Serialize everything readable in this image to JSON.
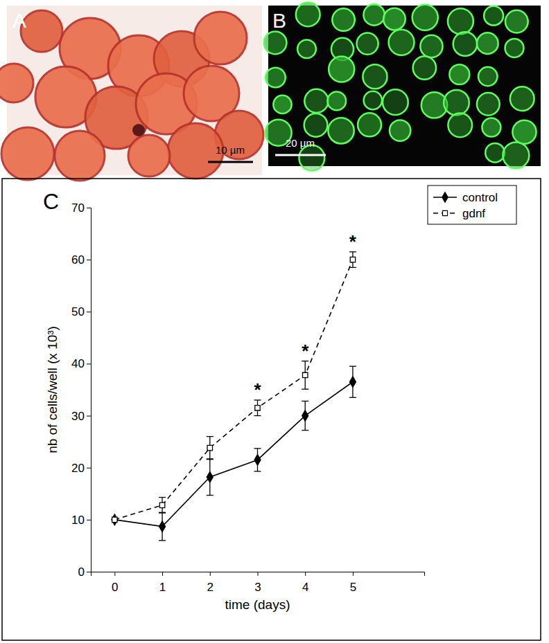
{
  "panels": [
    {
      "label": "A",
      "scale_bar": "10 µm"
    },
    {
      "label": "B",
      "scale_bar": "20 µm"
    },
    {
      "label": "C"
    }
  ],
  "chart_data": {
    "type": "line",
    "x_label": "time (days)",
    "y_label": "nb of cells/well (x 10³)",
    "x": [
      0,
      1,
      2,
      3,
      4,
      5
    ],
    "series": [
      {
        "name": "control",
        "color": "#000000",
        "marker": "diamond",
        "line_style": "solid",
        "values": [
          10,
          8.7,
          18.2,
          21.5,
          30,
          36.5
        ],
        "errors": [
          null,
          2.7,
          3.5,
          2.2,
          2.8,
          3
        ]
      },
      {
        "name": "gdnf",
        "color": "#000000",
        "marker": "open-square",
        "line_style": "dashed",
        "values": [
          10,
          12.8,
          23.8,
          31.5,
          37.8,
          60
        ],
        "errors": [
          null,
          1.5,
          2.2,
          1.5,
          2.7,
          1.5
        ]
      }
    ],
    "annotations": [
      {
        "x": 3,
        "text": "*"
      },
      {
        "x": 4,
        "text": "*"
      },
      {
        "x": 5,
        "text": "*"
      }
    ],
    "xlim": [
      -0.5,
      6.5
    ],
    "xticks": [
      0,
      1,
      2,
      3,
      4,
      5
    ],
    "ylim": [
      0,
      70
    ],
    "yticks": [
      0,
      10,
      20,
      30,
      40,
      50,
      60,
      70
    ],
    "grid": false,
    "legend": "upper right"
  }
}
